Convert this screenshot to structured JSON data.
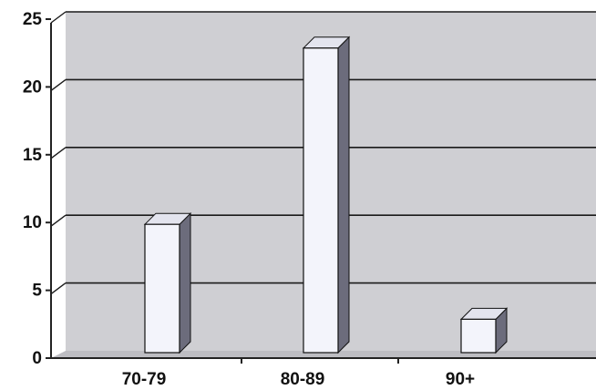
{
  "chart_data": {
    "type": "bar",
    "categories": [
      "70-79",
      "80-89",
      "90+"
    ],
    "series": [
      {
        "values": [
          10,
          23,
          3
        ]
      }
    ],
    "ylim": [
      0,
      25
    ],
    "yticks": [
      0,
      5,
      10,
      15,
      20,
      25
    ],
    "grid": true,
    "three_d": true,
    "legend": "none",
    "colors": {
      "wall": "#cfcfd3",
      "floor": "#bdbdc2",
      "bar_front": "#f3f4fb",
      "bar_top": "#e3e4ee",
      "bar_side": "#6c6c7c",
      "axis": "#222222",
      "gridline": "#1a1a1a"
    }
  }
}
